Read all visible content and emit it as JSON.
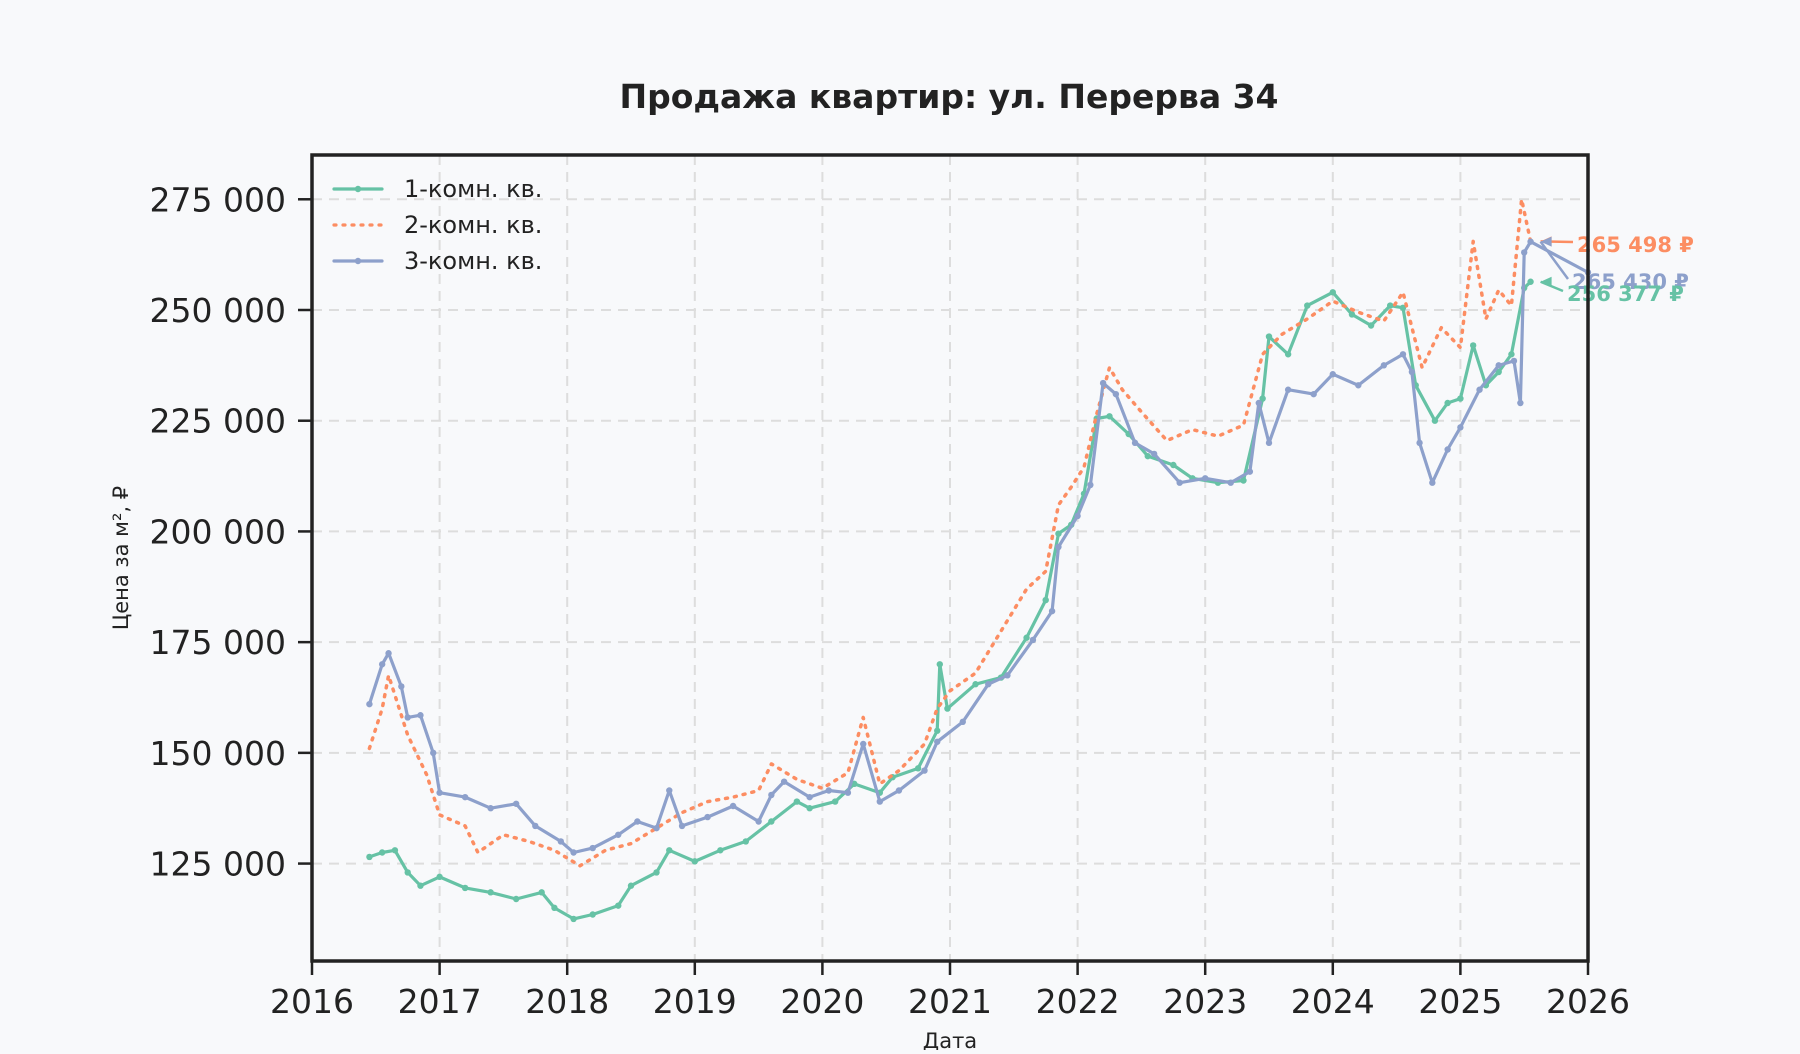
{
  "colors": {
    "background": "#f8f9fb",
    "axes_frame": "#222222",
    "grid": "#dddddd",
    "text": "#222222",
    "series_1": "#66c2a5",
    "series_2": "#fc8d62",
    "series_3": "#8da0cb"
  },
  "chart_data": {
    "type": "line",
    "title": "Продажа квартир: ул. Перерва 34",
    "xlabel": "Дата",
    "ylabel": "Цена за м², ₽",
    "x_ticks": [
      "2016",
      "2017",
      "2018",
      "2019",
      "2020",
      "2021",
      "2022",
      "2023",
      "2024",
      "2025",
      "2026"
    ],
    "xlim": [
      2016,
      2026
    ],
    "y_ticks": [
      "125 000",
      "150 000",
      "175 000",
      "200 000",
      "225 000",
      "250 000",
      "275 000"
    ],
    "y_tick_values": [
      125000,
      150000,
      175000,
      200000,
      225000,
      250000,
      275000
    ],
    "ylim": [
      103000,
      285000
    ],
    "grid": true,
    "legend_position": "top-left",
    "series": [
      {
        "name": "1-комн. кв.",
        "line_style": "solid-with-markers",
        "color": "#66c2a5",
        "points": [
          [
            2016.45,
            126500
          ],
          [
            2016.55,
            127500
          ],
          [
            2016.65,
            128000
          ],
          [
            2016.75,
            123000
          ],
          [
            2016.85,
            120000
          ],
          [
            2017.0,
            122000
          ],
          [
            2017.2,
            119500
          ],
          [
            2017.4,
            118500
          ],
          [
            2017.6,
            117000
          ],
          [
            2017.8,
            118500
          ],
          [
            2017.9,
            115000
          ],
          [
            2018.05,
            112500
          ],
          [
            2018.2,
            113500
          ],
          [
            2018.4,
            115500
          ],
          [
            2018.5,
            120000
          ],
          [
            2018.7,
            123000
          ],
          [
            2018.8,
            128000
          ],
          [
            2019.0,
            125500
          ],
          [
            2019.2,
            128000
          ],
          [
            2019.4,
            130000
          ],
          [
            2019.6,
            134500
          ],
          [
            2019.8,
            139000
          ],
          [
            2019.9,
            137500
          ],
          [
            2020.1,
            139000
          ],
          [
            2020.25,
            143000
          ],
          [
            2020.45,
            141000
          ],
          [
            2020.55,
            144500
          ],
          [
            2020.75,
            146500
          ],
          [
            2020.9,
            155000
          ],
          [
            2020.92,
            170000
          ],
          [
            2020.98,
            160000
          ],
          [
            2021.2,
            165500
          ],
          [
            2021.4,
            167000
          ],
          [
            2021.6,
            176000
          ],
          [
            2021.75,
            184500
          ],
          [
            2021.85,
            199500
          ],
          [
            2021.95,
            201500
          ],
          [
            2022.05,
            208500
          ],
          [
            2022.15,
            225500
          ],
          [
            2022.25,
            226000
          ],
          [
            2022.4,
            222000
          ],
          [
            2022.55,
            217000
          ],
          [
            2022.75,
            215000
          ],
          [
            2022.9,
            212000
          ],
          [
            2023.1,
            211000
          ],
          [
            2023.3,
            211500
          ],
          [
            2023.45,
            230000
          ],
          [
            2023.5,
            244000
          ],
          [
            2023.65,
            240000
          ],
          [
            2023.8,
            251000
          ],
          [
            2024.0,
            254000
          ],
          [
            2024.15,
            249000
          ],
          [
            2024.3,
            246500
          ],
          [
            2024.45,
            251000
          ],
          [
            2024.55,
            250500
          ],
          [
            2024.65,
            233000
          ],
          [
            2024.8,
            225000
          ],
          [
            2024.9,
            229000
          ],
          [
            2025.0,
            230000
          ],
          [
            2025.1,
            242000
          ],
          [
            2025.2,
            233000
          ],
          [
            2025.3,
            236000
          ],
          [
            2025.4,
            240000
          ],
          [
            2025.5,
            255000
          ],
          [
            2025.55,
            256377
          ]
        ]
      },
      {
        "name": "2-комн. кв.",
        "line_style": "dotted",
        "color": "#fc8d62",
        "points": [
          [
            2016.45,
            151000
          ],
          [
            2016.55,
            160000
          ],
          [
            2016.6,
            167500
          ],
          [
            2016.75,
            154000
          ],
          [
            2016.9,
            145000
          ],
          [
            2017.0,
            136000
          ],
          [
            2017.2,
            133500
          ],
          [
            2017.3,
            127500
          ],
          [
            2017.5,
            131500
          ],
          [
            2017.7,
            130000
          ],
          [
            2017.9,
            128000
          ],
          [
            2018.1,
            124500
          ],
          [
            2018.3,
            128000
          ],
          [
            2018.5,
            129500
          ],
          [
            2018.7,
            133000
          ],
          [
            2018.9,
            136500
          ],
          [
            2019.1,
            139000
          ],
          [
            2019.3,
            140000
          ],
          [
            2019.5,
            141500
          ],
          [
            2019.6,
            147500
          ],
          [
            2019.8,
            144000
          ],
          [
            2020.0,
            142000
          ],
          [
            2020.2,
            145500
          ],
          [
            2020.32,
            158000
          ],
          [
            2020.45,
            143000
          ],
          [
            2020.6,
            146000
          ],
          [
            2020.8,
            152000
          ],
          [
            2020.9,
            160000
          ],
          [
            2021.0,
            164000
          ],
          [
            2021.2,
            168000
          ],
          [
            2021.4,
            177500
          ],
          [
            2021.6,
            187000
          ],
          [
            2021.75,
            191000
          ],
          [
            2021.85,
            206000
          ],
          [
            2021.95,
            210000
          ],
          [
            2022.05,
            214500
          ],
          [
            2022.15,
            226500
          ],
          [
            2022.25,
            237000
          ],
          [
            2022.35,
            232000
          ],
          [
            2022.5,
            227000
          ],
          [
            2022.7,
            220500
          ],
          [
            2022.9,
            223000
          ],
          [
            2023.1,
            221500
          ],
          [
            2023.3,
            224000
          ],
          [
            2023.45,
            240000
          ],
          [
            2023.6,
            244500
          ],
          [
            2023.8,
            248000
          ],
          [
            2024.0,
            252000
          ],
          [
            2024.2,
            249500
          ],
          [
            2024.4,
            247500
          ],
          [
            2024.55,
            254000
          ],
          [
            2024.7,
            237000
          ],
          [
            2024.85,
            246000
          ],
          [
            2025.0,
            241500
          ],
          [
            2025.1,
            265500
          ],
          [
            2025.2,
            248000
          ],
          [
            2025.3,
            254500
          ],
          [
            2025.4,
            251000
          ],
          [
            2025.48,
            275000
          ],
          [
            2025.55,
            265498
          ]
        ]
      },
      {
        "name": "3-комн. кв.",
        "line_style": "solid-with-markers",
        "color": "#8da0cb",
        "points": [
          [
            2016.45,
            161000
          ],
          [
            2016.55,
            170000
          ],
          [
            2016.6,
            172500
          ],
          [
            2016.7,
            165000
          ],
          [
            2016.75,
            158000
          ],
          [
            2016.85,
            158500
          ],
          [
            2016.95,
            150000
          ],
          [
            2017.0,
            141000
          ],
          [
            2017.2,
            140000
          ],
          [
            2017.4,
            137500
          ],
          [
            2017.6,
            138500
          ],
          [
            2017.75,
            133500
          ],
          [
            2017.95,
            130000
          ],
          [
            2018.05,
            127500
          ],
          [
            2018.2,
            128500
          ],
          [
            2018.4,
            131500
          ],
          [
            2018.55,
            134500
          ],
          [
            2018.7,
            133000
          ],
          [
            2018.8,
            141500
          ],
          [
            2018.9,
            133500
          ],
          [
            2019.1,
            135500
          ],
          [
            2019.3,
            138000
          ],
          [
            2019.5,
            134500
          ],
          [
            2019.6,
            140500
          ],
          [
            2019.7,
            143500
          ],
          [
            2019.9,
            140000
          ],
          [
            2020.05,
            141500
          ],
          [
            2020.2,
            141000
          ],
          [
            2020.32,
            152000
          ],
          [
            2020.45,
            139000
          ],
          [
            2020.6,
            141500
          ],
          [
            2020.8,
            146000
          ],
          [
            2020.9,
            152500
          ],
          [
            2021.1,
            157000
          ],
          [
            2021.3,
            165500
          ],
          [
            2021.45,
            167500
          ],
          [
            2021.65,
            175500
          ],
          [
            2021.8,
            182000
          ],
          [
            2021.85,
            196500
          ],
          [
            2022.0,
            203500
          ],
          [
            2022.1,
            210500
          ],
          [
            2022.2,
            233500
          ],
          [
            2022.3,
            231000
          ],
          [
            2022.45,
            220000
          ],
          [
            2022.6,
            217500
          ],
          [
            2022.8,
            211000
          ],
          [
            2023.0,
            212000
          ],
          [
            2023.2,
            211000
          ],
          [
            2023.35,
            213500
          ],
          [
            2023.42,
            229000
          ],
          [
            2023.5,
            220000
          ],
          [
            2023.65,
            232000
          ],
          [
            2023.85,
            231000
          ],
          [
            2024.0,
            235500
          ],
          [
            2024.2,
            233000
          ],
          [
            2024.4,
            237500
          ],
          [
            2024.55,
            240000
          ],
          [
            2024.62,
            236000
          ],
          [
            2024.68,
            220000
          ],
          [
            2024.78,
            211000
          ],
          [
            2024.9,
            218500
          ],
          [
            2025.0,
            223500
          ],
          [
            2025.15,
            232000
          ],
          [
            2025.3,
            237500
          ],
          [
            2025.42,
            238500
          ],
          [
            2025.47,
            229000
          ],
          [
            2025.5,
            263000
          ],
          [
            2025.55,
            265430
          ],
          [
            2026.0,
            258500
          ]
        ]
      }
    ],
    "annotations": [
      {
        "text": "265 498 ₽",
        "series": "2-комн. кв.",
        "y": 265498
      },
      {
        "text": "265 430 ₽",
        "series": "3-комн. кв.",
        "y": 265430
      },
      {
        "text": "256 377 ₽",
        "series": "1-комн. кв.",
        "y": 256377
      }
    ]
  }
}
